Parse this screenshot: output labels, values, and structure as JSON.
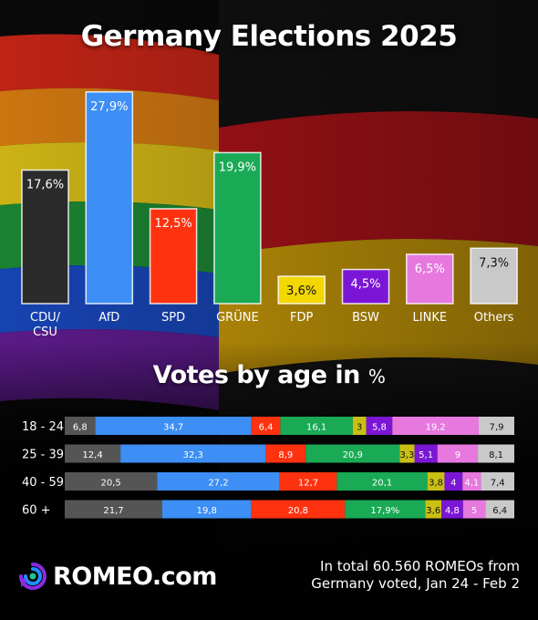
{
  "title": "Germany Elections 2025",
  "subtitle": {
    "main": "Votes by age in",
    "unit": "%"
  },
  "brand": {
    "logo_text": "ROMEO.com",
    "logo_icon": "romeo-logo-icon"
  },
  "footnote": "In total 60.560 ROMEOs from Germany voted, Jan 24 - Feb 2",
  "chart_data": [
    {
      "type": "bar",
      "title": "Germany Elections 2025",
      "categories": [
        "CDU/\nCSU",
        "AfD",
        "SPD",
        "GRÜNE",
        "FDP",
        "BSW",
        "LINKE",
        "Others"
      ],
      "values": [
        17.6,
        27.9,
        12.5,
        19.9,
        3.6,
        4.5,
        6.5,
        7.3
      ],
      "labels": [
        "17,6%",
        "27,9%",
        "12,5%",
        "19,9%",
        "3,6%",
        "4,5%",
        "6,5%",
        "7,3%"
      ],
      "colors": [
        "#2b2b2b",
        "#3d8ef5",
        "#ff3210",
        "#1aaa55",
        "#f2d700",
        "#7b16d6",
        "#e678de",
        "#c9c9c9"
      ],
      "ylim": [
        0,
        28
      ],
      "grid": false
    },
    {
      "type": "bar",
      "orientation": "horizontal",
      "stacked": true,
      "title": "Votes by age in %",
      "categories": [
        "18 - 24",
        "25 - 39",
        "40 - 59",
        "60 +"
      ],
      "series": [
        {
          "name": "CDU/CSU",
          "color": "#555555",
          "values": [
            6.8,
            12.4,
            20.5,
            21.7
          ],
          "labels": [
            "6,8",
            "12,4",
            "20,5",
            "21,7"
          ]
        },
        {
          "name": "AfD",
          "color": "#3d8ef5",
          "values": [
            34.7,
            32.3,
            27.2,
            19.8
          ],
          "labels": [
            "34,7",
            "32,3",
            "27,2",
            "19,8"
          ]
        },
        {
          "name": "SPD",
          "color": "#ff3210",
          "values": [
            6.4,
            8.9,
            12.7,
            20.8
          ],
          "labels": [
            "6,4",
            "8,9",
            "12,7",
            "20,8"
          ]
        },
        {
          "name": "GRÜNE",
          "color": "#1aaa55",
          "values": [
            16.1,
            20.9,
            20.1,
            17.9
          ],
          "labels": [
            "16,1",
            "20,9",
            "20,1",
            "17,9%"
          ]
        },
        {
          "name": "FDP",
          "color": "#c9c014",
          "values": [
            3,
            3.3,
            3.8,
            3.6
          ],
          "labels": [
            "3",
            "3,3",
            "3,8",
            "3,6"
          ]
        },
        {
          "name": "BSW",
          "color": "#7b16d6",
          "values": [
            5.8,
            5.1,
            4,
            4.8
          ],
          "labels": [
            "5,8",
            "5,1",
            "4",
            "4,8"
          ]
        },
        {
          "name": "LINKE",
          "color": "#e678de",
          "values": [
            19.2,
            9,
            4.1,
            5
          ],
          "labels": [
            "19,2",
            "9",
            "4,1",
            "5"
          ]
        },
        {
          "name": "Others",
          "color": "#c9c9c9",
          "values": [
            7.9,
            8.1,
            7.4,
            6.4
          ],
          "labels": [
            "7,9",
            "8,1",
            "7,4",
            "6,4"
          ]
        }
      ],
      "xlim": [
        0,
        100
      ],
      "legend": "none"
    }
  ]
}
